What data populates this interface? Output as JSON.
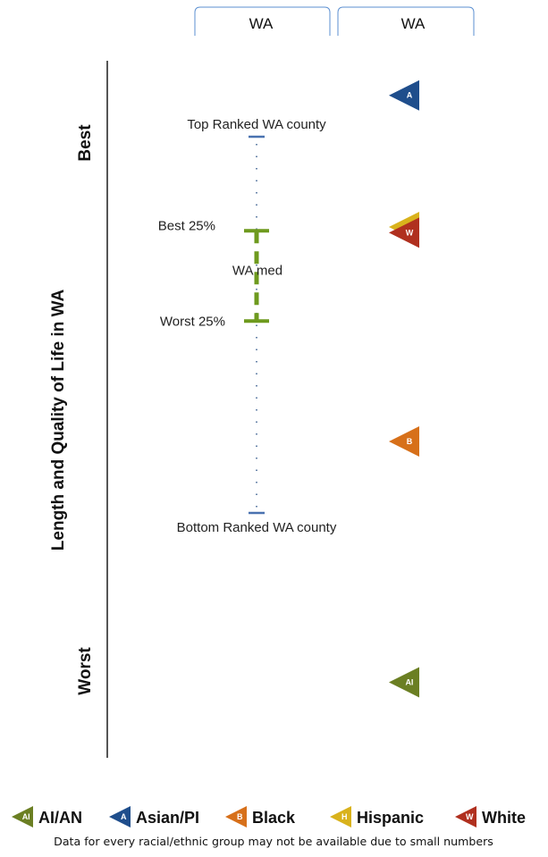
{
  "tabs": [
    {
      "label": "WA"
    },
    {
      "label": "WA"
    }
  ],
  "chart_data": {
    "type": "scatter",
    "ylabel": "Length and Quality of Life in WA",
    "ylabel_top": "Best",
    "ylabel_bottom": "Worst",
    "scale": "rank (best at top, worst at bottom)",
    "reference": {
      "top_label": "Top Ranked WA county",
      "best25_label": "Best 25%",
      "median_label": "WA med",
      "worst25_label": "Worst 25%",
      "bottom_label": "Bottom Ranked WA county",
      "top_value": 0,
      "best25_value": 25,
      "median_value": 35.5,
      "worst25_value": 49,
      "bottom_value": 100
    },
    "series": [
      {
        "name": "AI/AN",
        "letter": "AI",
        "color": "#6b7f23",
        "value": 145
      },
      {
        "name": "Asian/PI",
        "letter": "A",
        "color": "#1f4e8c",
        "value": -11
      },
      {
        "name": "Black",
        "letter": "B",
        "color": "#d7701a",
        "value": 81
      },
      {
        "name": "Hispanic",
        "letter": "H",
        "color": "#d9b21c",
        "value": 24
      },
      {
        "name": "White",
        "letter": "W",
        "color": "#b0301f",
        "value": 25.5
      }
    ],
    "legend_position": "bottom",
    "footnote": "Data for every racial/ethnic group may not be available due to small numbers"
  }
}
